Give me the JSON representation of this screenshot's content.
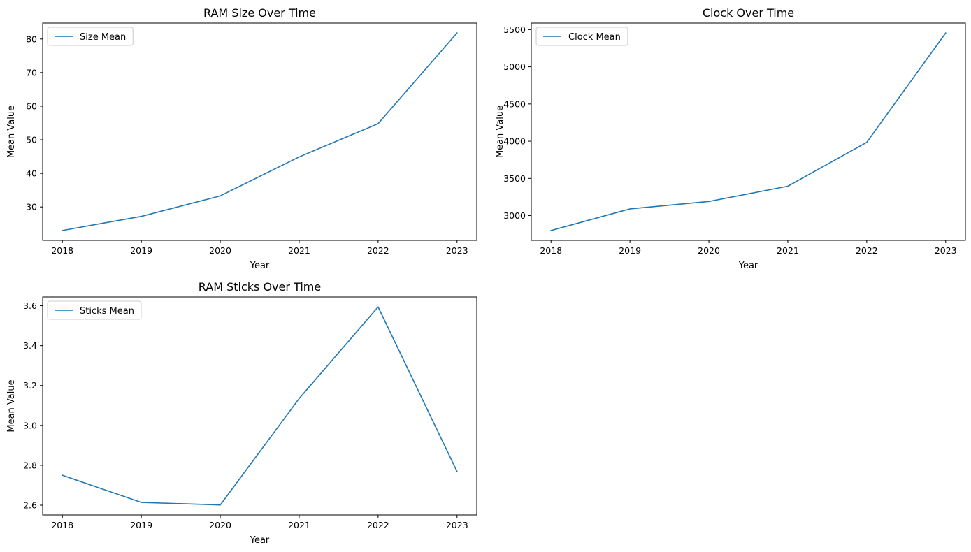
{
  "chart_data": [
    {
      "type": "line",
      "title": "RAM Size Over Time",
      "xlabel": "Year",
      "ylabel": "Mean Value",
      "x": [
        2018,
        2019,
        2020,
        2021,
        2022,
        2023
      ],
      "series": [
        {
          "name": "Size Mean",
          "color": "#1f77b4",
          "values": [
            23.0,
            27.2,
            33.3,
            44.9,
            54.8,
            81.8
          ]
        }
      ],
      "yticks": [
        30,
        40,
        50,
        60,
        70,
        80
      ],
      "xlim": [
        2017.75,
        2023.25
      ],
      "ylim": [
        20.06,
        84.74
      ],
      "legend": "upper-left",
      "grid": false
    },
    {
      "type": "line",
      "title": "Clock Over Time",
      "xlabel": "Year",
      "ylabel": "Mean Value",
      "x": [
        2018,
        2019,
        2020,
        2021,
        2022,
        2023
      ],
      "series": [
        {
          "name": "Clock Mean",
          "color": "#1f77b4",
          "values": [
            2800,
            3090,
            3190,
            3395,
            3985,
            5455
          ]
        }
      ],
      "yticks": [
        3000,
        3500,
        4000,
        4500,
        5000,
        5500
      ],
      "xlim": [
        2017.75,
        2023.25
      ],
      "ylim": [
        2667,
        5588
      ],
      "legend": "upper-left",
      "grid": false
    },
    {
      "type": "line",
      "title": "RAM Sticks Over Time",
      "xlabel": "Year",
      "ylabel": "Mean Value",
      "x": [
        2018,
        2019,
        2020,
        2021,
        2022,
        2023
      ],
      "series": [
        {
          "name": "Sticks Mean",
          "color": "#1f77b4",
          "values": [
            2.75,
            2.614,
            2.601,
            3.135,
            3.594,
            2.769
          ]
        }
      ],
      "yticks": [
        2.6,
        2.8,
        3.0,
        3.2,
        3.4,
        3.6
      ],
      "xlim": [
        2017.75,
        2023.25
      ],
      "ylim": [
        2.551,
        3.644
      ],
      "legend": "upper-left",
      "grid": false
    }
  ]
}
